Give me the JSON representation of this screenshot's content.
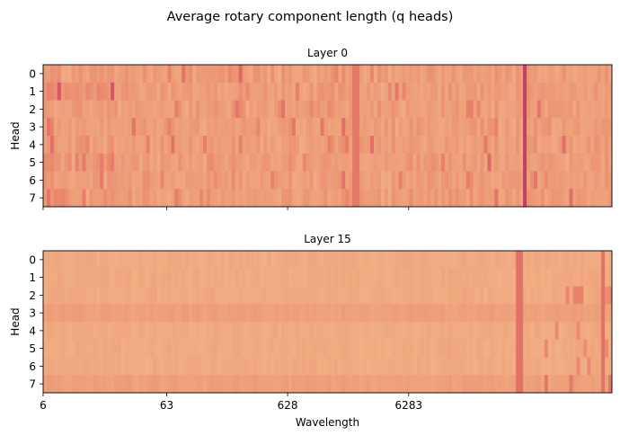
{
  "figure": {
    "title": "Average rotary component length (q heads)"
  },
  "chart_data": [
    {
      "type": "heatmap",
      "title": "Layer 0",
      "ylabel": "Head",
      "xlabel": "",
      "rows": [
        "0",
        "1",
        "2",
        "3",
        "4",
        "5",
        "6",
        "7"
      ],
      "x_ticks": [
        {
          "value": 6,
          "label": ""
        },
        {
          "value": 63,
          "label": ""
        },
        {
          "value": 628,
          "label": ""
        },
        {
          "value": 6283,
          "label": ""
        }
      ],
      "xlim": [
        6,
        300000
      ],
      "x_scale": "log",
      "n_columns": 160,
      "colormap": [
        "#f4b78a",
        "#eea07a",
        "#e8806a",
        "#d95a64",
        "#b83a6a"
      ],
      "highlight_columns": [
        {
          "at": 2300,
          "strength": 0.55,
          "rows": [
            0,
            1,
            2,
            3,
            4,
            5,
            6,
            7
          ]
        },
        {
          "at": 56000,
          "strength": 0.95,
          "rows": [
            0,
            1,
            2,
            3,
            4,
            5,
            6,
            7
          ]
        },
        {
          "at": 20000,
          "strength": 0.5,
          "rows": [
            2
          ]
        },
        {
          "at": 30000,
          "strength": 0.35,
          "rows": [
            3
          ]
        }
      ]
    },
    {
      "type": "heatmap",
      "title": "Layer 15",
      "ylabel": "Head",
      "xlabel": "Wavelength",
      "rows": [
        "0",
        "1",
        "2",
        "3",
        "4",
        "5",
        "6",
        "7"
      ],
      "x_ticks": [
        {
          "value": 6,
          "label": "6"
        },
        {
          "value": 63,
          "label": "63"
        },
        {
          "value": 628,
          "label": "628"
        },
        {
          "value": 6283,
          "label": "6283"
        }
      ],
      "xlim": [
        6,
        300000
      ],
      "x_scale": "log",
      "n_columns": 160,
      "colormap": [
        "#f4b78a",
        "#eea07a",
        "#e8806a",
        "#d95a64",
        "#b83a6a"
      ],
      "highlight_columns": [
        {
          "at": 52000,
          "strength": 0.6,
          "rows": [
            0,
            1,
            2,
            3,
            4,
            5,
            6,
            7
          ]
        },
        {
          "at": 250000,
          "strength": 0.6,
          "rows": [
            0,
            1,
            2,
            3,
            4,
            5,
            6,
            7
          ]
        }
      ]
    }
  ]
}
